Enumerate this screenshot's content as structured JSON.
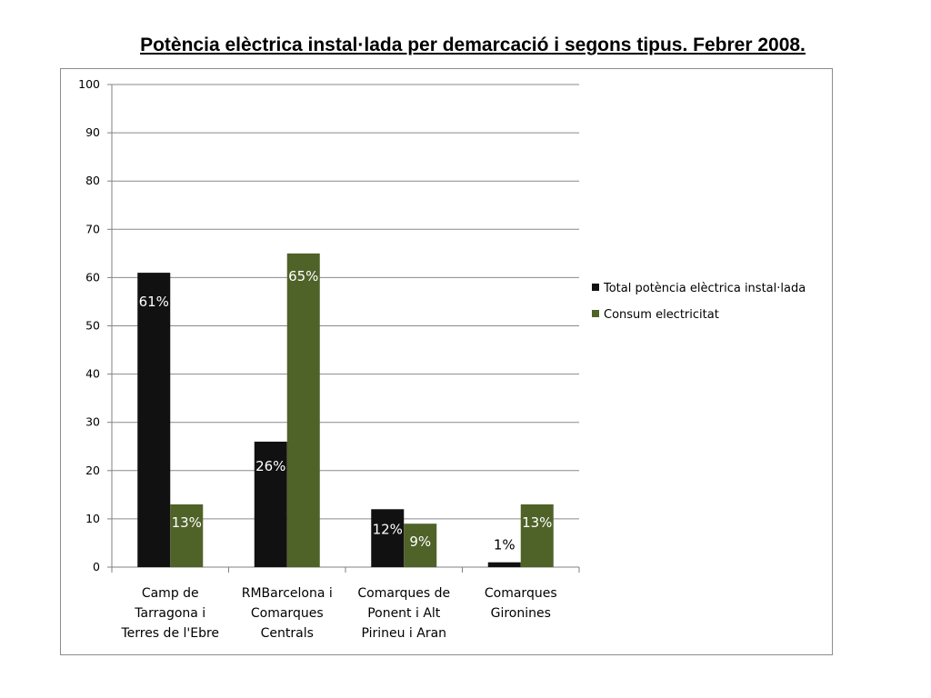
{
  "chart_data": {
    "type": "bar",
    "title": "Potència elèctrica instal·lada per demarcació i segons tipus. Febrer 2008.",
    "categories": [
      [
        "Camp de",
        "Tarragona i",
        "Terres de l'Ebre"
      ],
      [
        "RMBarcelona i",
        "Comarques",
        "Centrals"
      ],
      [
        "Comarques de",
        "Ponent i Alt",
        "Pirineu i Aran"
      ],
      [
        "Comarques",
        "Gironines"
      ]
    ],
    "series": [
      {
        "name": "Total potència elèctrica instal·lada",
        "color": "#111111",
        "values": [
          61,
          26,
          12,
          1
        ],
        "labels": [
          "61%",
          "26%",
          "12%",
          "1%"
        ]
      },
      {
        "name": "Consum electricitat",
        "color": "#4f6228",
        "values": [
          13,
          65,
          9,
          13
        ],
        "labels": [
          "13%",
          "65%",
          "9%",
          "13%"
        ]
      }
    ],
    "ylim": [
      0,
      100
    ],
    "yticks": [
      0,
      10,
      20,
      30,
      40,
      50,
      60,
      70,
      80,
      90,
      100
    ],
    "grid": true,
    "legend": "right"
  }
}
